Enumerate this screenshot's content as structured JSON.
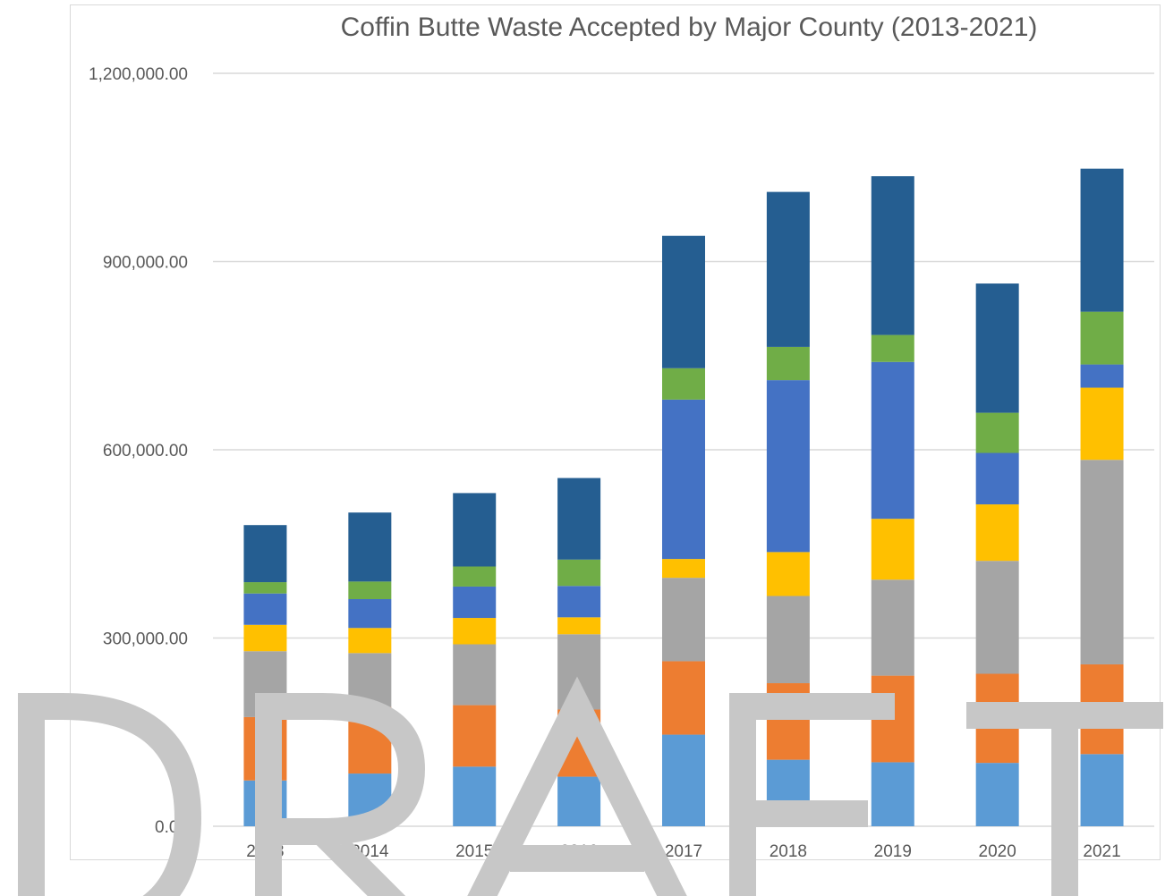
{
  "chart_data": {
    "type": "bar",
    "stacked": true,
    "title": "Coffin Butte Waste Accepted by Major County (2013-2021)",
    "xlabel": "",
    "ylabel": "",
    "ylim": [
      0,
      1200000
    ],
    "yticks": [
      0,
      300000,
      600000,
      900000,
      1200000
    ],
    "ytick_labels": [
      "0.00",
      "300,000.00",
      "600,000.00",
      "900,000.00",
      "1,200,000.00"
    ],
    "grid": true,
    "legend": "none",
    "categories": [
      "2013",
      "2014",
      "2015",
      "2016",
      "2017",
      "2018",
      "2019",
      "2020",
      "2021"
    ],
    "series": [
      {
        "color": "#5b9bd5",
        "values": [
          73000,
          84000,
          95000,
          79000,
          146000,
          106000,
          102000,
          101000,
          115000
        ]
      },
      {
        "color": "#ed7d31",
        "values": [
          101000,
          106000,
          98000,
          107000,
          117000,
          122000,
          138000,
          142000,
          143000
        ]
      },
      {
        "color": "#a5a5a5",
        "values": [
          105000,
          86000,
          97000,
          120000,
          133000,
          139000,
          153000,
          180000,
          326000
        ]
      },
      {
        "color": "#ffc000",
        "values": [
          42000,
          40000,
          42000,
          27000,
          30000,
          70000,
          97000,
          90000,
          115000
        ]
      },
      {
        "color": "#4472c4",
        "values": [
          50000,
          46000,
          50000,
          50000,
          254000,
          274000,
          250000,
          82000,
          37000
        ]
      },
      {
        "color": "#70ad47",
        "values": [
          18000,
          28000,
          32000,
          42000,
          50000,
          53000,
          43000,
          64000,
          84000
        ]
      },
      {
        "color": "#255e91",
        "values": [
          91000,
          110000,
          117000,
          130000,
          211000,
          247000,
          253000,
          206000,
          228000
        ]
      }
    ]
  },
  "watermark": {
    "text": "DRAFT",
    "color": "#c7c7c7"
  }
}
